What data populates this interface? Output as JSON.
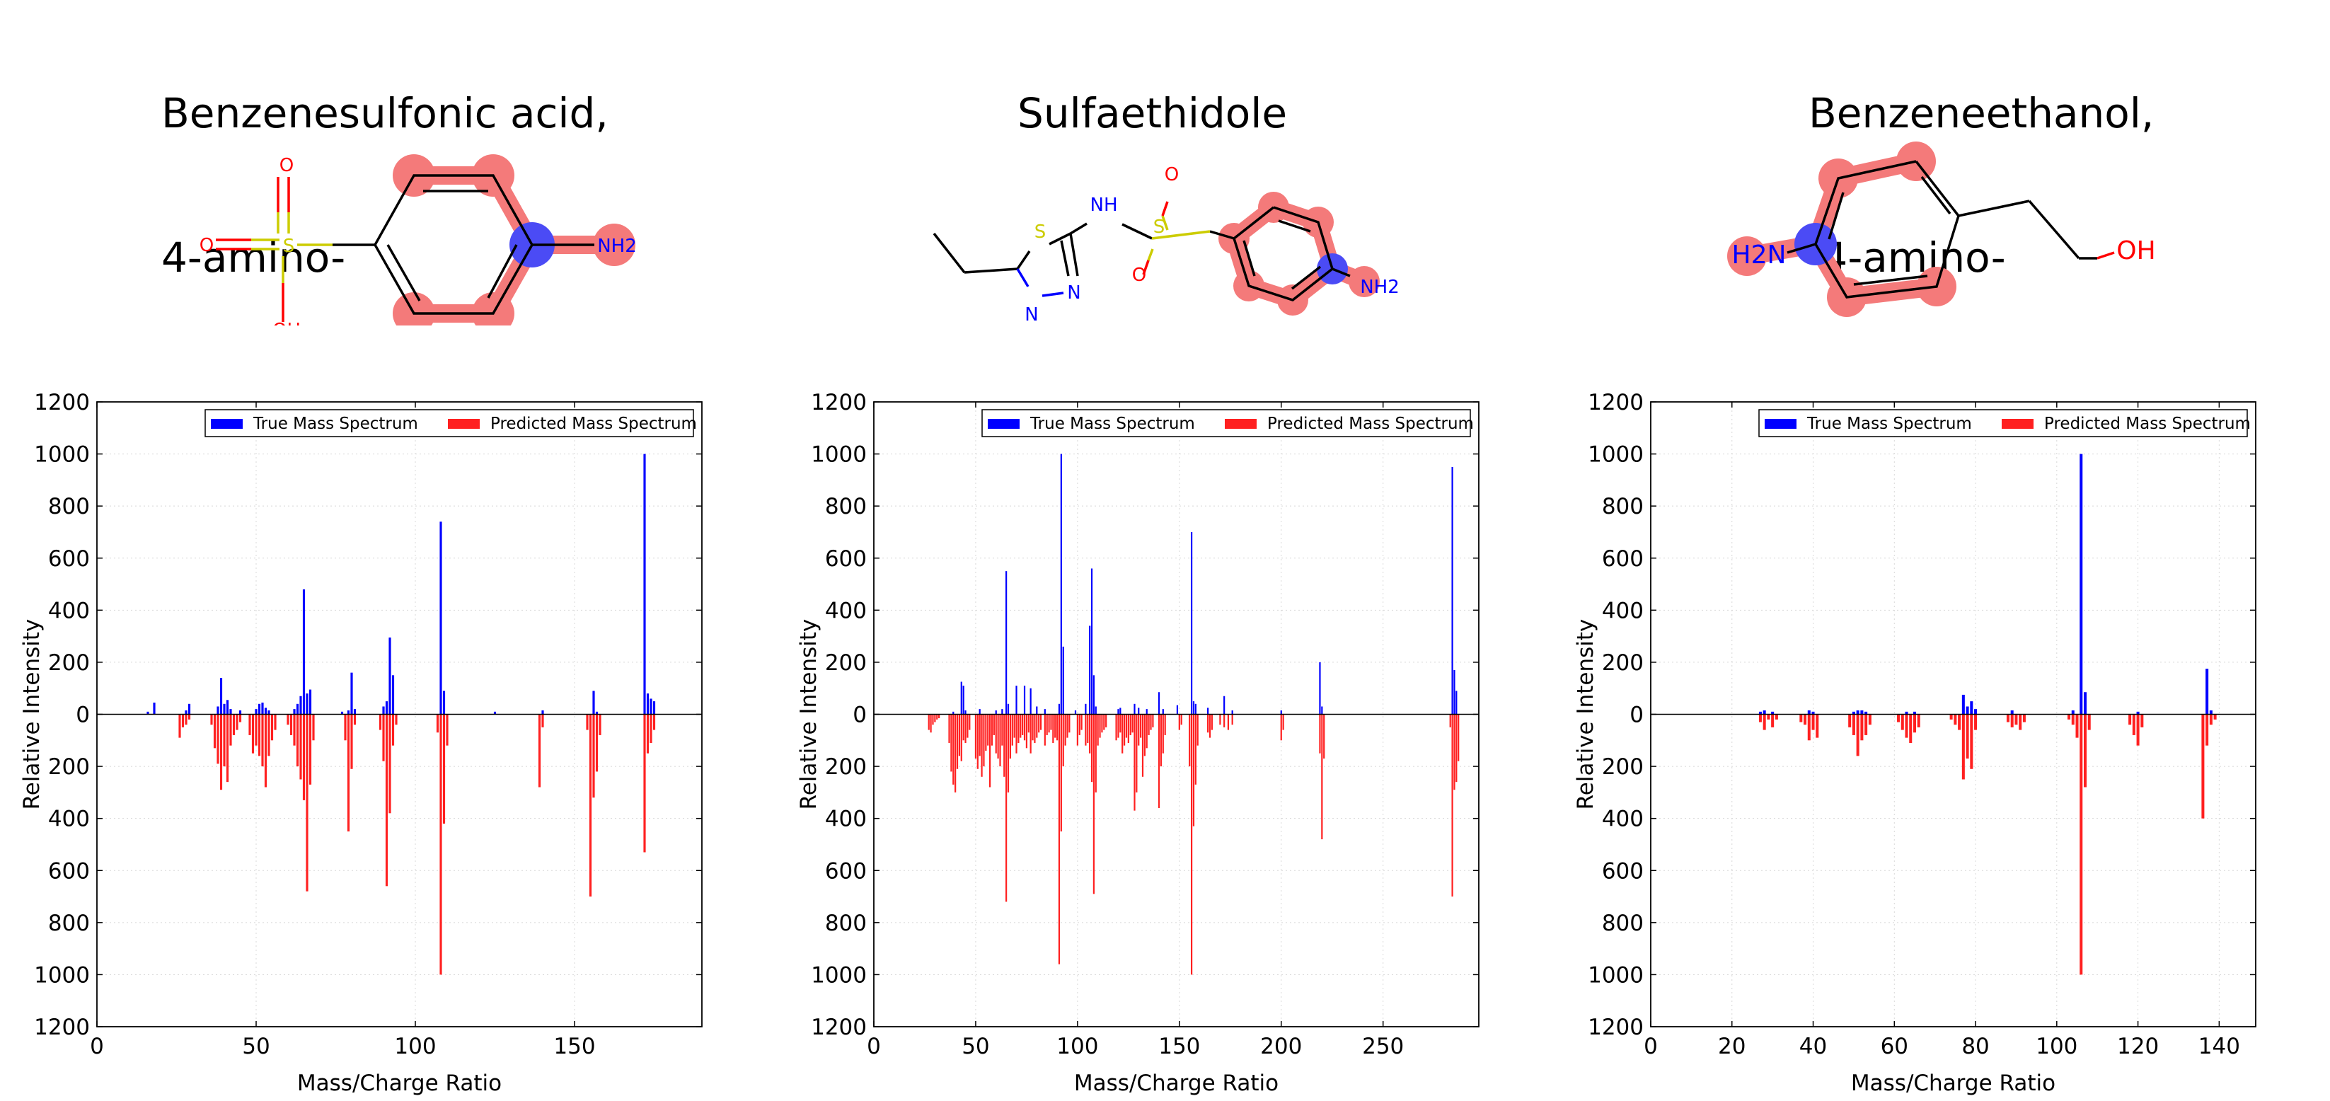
{
  "legend": {
    "true_label": "True Mass Spectrum",
    "pred_label": "Predicted Mass Spectrum"
  },
  "colors": {
    "true": "#0000ff",
    "pred": "#ff2020",
    "highlight": "#f47a7a",
    "atom_highlight": "#4b4bf5"
  },
  "panels": [
    {
      "title_line1": "Benzenesulfonic acid,",
      "title_line2": "4-amino-",
      "molecule": {
        "atoms": [
          {
            "label": "O",
            "color": "#ff0000"
          },
          {
            "label": "O",
            "color": "#ff0000"
          },
          {
            "label": "S",
            "color": "#cccc00"
          },
          {
            "label": "NH2",
            "color": "#0000ff"
          },
          {
            "label": "OH",
            "color": "#ff0000"
          }
        ]
      },
      "chart_data": {
        "type": "bar",
        "title": "",
        "xlabel": "Mass/Charge Ratio",
        "ylabel": "Relative Intensity",
        "xlim": [
          0,
          190
        ],
        "ylim": [
          -1200,
          1200
        ],
        "xticks": [
          0,
          50,
          100,
          150
        ],
        "yticks": [
          1200,
          1000,
          800,
          600,
          400,
          200,
          0,
          200,
          400,
          600,
          800,
          1000,
          1200
        ],
        "series": [
          {
            "name": "True Mass Spectrum",
            "x": [
              16,
              18,
              28,
              29,
              38,
              39,
              40,
              41,
              42,
              45,
              50,
              51,
              52,
              53,
              54,
              62,
              63,
              64,
              65,
              66,
              67,
              77,
              79,
              80,
              81,
              90,
              91,
              92,
              93,
              108,
              109,
              125,
              140,
              156,
              157,
              172,
              173,
              174,
              175
            ],
            "values": [
              10,
              45,
              15,
              40,
              30,
              140,
              40,
              55,
              20,
              15,
              20,
              40,
              45,
              25,
              15,
              20,
              40,
              70,
              480,
              80,
              95,
              10,
              15,
              160,
              20,
              30,
              50,
              295,
              150,
              740,
              90,
              10,
              15,
              90,
              10,
              1000,
              80,
              60,
              50
            ]
          },
          {
            "name": "Predicted Mass Spectrum",
            "x": [
              26,
              27,
              28,
              29,
              36,
              37,
              38,
              39,
              40,
              41,
              42,
              43,
              44,
              45,
              48,
              49,
              50,
              51,
              52,
              53,
              54,
              55,
              56,
              60,
              61,
              62,
              63,
              64,
              65,
              66,
              67,
              68,
              78,
              79,
              80,
              81,
              89,
              90,
              91,
              92,
              93,
              94,
              107,
              108,
              109,
              110,
              139,
              140,
              154,
              155,
              156,
              157,
              158,
              172,
              173,
              174,
              175
            ],
            "values": [
              90,
              50,
              40,
              20,
              40,
              130,
              190,
              290,
              200,
              260,
              120,
              80,
              60,
              30,
              80,
              150,
              120,
              160,
              200,
              280,
              160,
              100,
              60,
              40,
              80,
              120,
              200,
              250,
              330,
              680,
              270,
              100,
              100,
              450,
              210,
              40,
              60,
              180,
              660,
              380,
              120,
              40,
              70,
              1000,
              420,
              120,
              280,
              50,
              60,
              700,
              320,
              220,
              80,
              530,
              150,
              110,
              60
            ]
          }
        ]
      }
    },
    {
      "title_line1": "Sulfaethidole",
      "title_line2": "",
      "molecule": {
        "atoms": [
          {
            "label": "S",
            "color": "#cccc00"
          },
          {
            "label": "N",
            "color": "#0000ff"
          },
          {
            "label": "N",
            "color": "#0000ff"
          },
          {
            "label": "NH",
            "color": "#0000ff"
          },
          {
            "label": "S",
            "color": "#cccc00"
          },
          {
            "label": "O",
            "color": "#ff0000"
          },
          {
            "label": "O",
            "color": "#ff0000"
          },
          {
            "label": "NH2",
            "color": "#0000ff"
          }
        ]
      },
      "chart_data": {
        "type": "bar",
        "title": "",
        "xlabel": "Mass/Charge Ratio",
        "ylabel": "Relative Intensity",
        "xlim": [
          0,
          297
        ],
        "ylim": [
          -1200,
          1200
        ],
        "xticks": [
          0,
          50,
          100,
          150,
          200,
          250
        ],
        "yticks": [
          1200,
          1000,
          800,
          600,
          400,
          200,
          0,
          200,
          400,
          600,
          800,
          1000,
          1200
        ],
        "series": [
          {
            "name": "True Mass Spectrum",
            "x": [
              39,
              43,
              44,
              45,
              52,
              60,
              63,
              65,
              66,
              70,
              74,
              77,
              80,
              84,
              91,
              92,
              93,
              99,
              104,
              106,
              107,
              108,
              109,
              120,
              121,
              128,
              130,
              134,
              140,
              142,
              149,
              156,
              157,
              158,
              164,
              172,
              176,
              200,
              219,
              220,
              284,
              285,
              286
            ],
            "values": [
              10,
              125,
              110,
              15,
              20,
              15,
              20,
              550,
              40,
              110,
              110,
              100,
              30,
              20,
              40,
              1000,
              260,
              15,
              40,
              340,
              560,
              150,
              30,
              20,
              25,
              40,
              25,
              20,
              85,
              20,
              35,
              700,
              50,
              40,
              25,
              70,
              15,
              15,
              200,
              30,
              950,
              170,
              90
            ]
          },
          {
            "name": "Predicted Mass Spectrum",
            "x": [
              27,
              28,
              29,
              30,
              31,
              32,
              37,
              38,
              39,
              40,
              41,
              42,
              43,
              44,
              45,
              46,
              47,
              50,
              51,
              52,
              53,
              54,
              55,
              56,
              57,
              58,
              59,
              60,
              61,
              62,
              63,
              64,
              65,
              66,
              67,
              68,
              69,
              70,
              71,
              72,
              73,
              74,
              75,
              76,
              77,
              78,
              79,
              80,
              81,
              82,
              84,
              85,
              86,
              87,
              88,
              89,
              90,
              91,
              92,
              93,
              94,
              95,
              96,
              100,
              101,
              102,
              104,
              105,
              106,
              107,
              108,
              109,
              110,
              111,
              112,
              113,
              114,
              119,
              120,
              121,
              122,
              123,
              124,
              125,
              126,
              127,
              128,
              129,
              130,
              131,
              132,
              133,
              134,
              135,
              136,
              137,
              140,
              141,
              142,
              143,
              150,
              151,
              155,
              156,
              157,
              158,
              159,
              164,
              165,
              166,
              170,
              172,
              174,
              176,
              200,
              201,
              219,
              220,
              221,
              283,
              284,
              285,
              286,
              287
            ],
            "values": [
              60,
              70,
              40,
              30,
              20,
              15,
              110,
              220,
              270,
              300,
              210,
              160,
              180,
              100,
              110,
              90,
              60,
              170,
              210,
              160,
              240,
              200,
              140,
              120,
              280,
              120,
              80,
              150,
              170,
              200,
              120,
              240,
              720,
              300,
              170,
              120,
              90,
              150,
              110,
              90,
              80,
              100,
              130,
              70,
              150,
              100,
              110,
              90,
              70,
              60,
              120,
              80,
              70,
              60,
              110,
              90,
              100,
              960,
              450,
              200,
              120,
              90,
              70,
              120,
              80,
              60,
              120,
              110,
              150,
              260,
              690,
              300,
              120,
              90,
              70,
              60,
              50,
              100,
              90,
              70,
              150,
              120,
              90,
              110,
              80,
              70,
              370,
              300,
              120,
              90,
              240,
              160,
              130,
              80,
              60,
              50,
              360,
              200,
              150,
              80,
              60,
              40,
              200,
              1000,
              430,
              270,
              120,
              70,
              90,
              60,
              40,
              50,
              60,
              40,
              100,
              60,
              150,
              480,
              170,
              50,
              700,
              290,
              260,
              180
            ]
          }
        ]
      }
    },
    {
      "title_line1": "Benzeneethanol,",
      "title_line2": " 4-amino-",
      "molecule": {
        "atoms": [
          {
            "label": "H2N",
            "color": "#0000ff"
          },
          {
            "label": "OH",
            "color": "#ff0000"
          }
        ]
      },
      "chart_data": {
        "type": "bar",
        "title": "",
        "xlabel": "Mass/Charge Ratio",
        "ylabel": "Relative Intensity",
        "xlim": [
          0,
          149
        ],
        "ylim": [
          -1200,
          1200
        ],
        "xticks": [
          0,
          20,
          40,
          60,
          80,
          100,
          120,
          140
        ],
        "yticks": [
          1200,
          1000,
          800,
          600,
          400,
          200,
          0,
          200,
          400,
          600,
          800,
          1000,
          1200
        ],
        "series": [
          {
            "name": "True Mass Spectrum",
            "x": [
              27,
              28,
              30,
              39,
              40,
              50,
              51,
              52,
              53,
              63,
              65,
              77,
              78,
              79,
              80,
              89,
              104,
              106,
              107,
              120,
              137,
              138
            ],
            "values": [
              10,
              15,
              10,
              15,
              10,
              10,
              15,
              15,
              10,
              10,
              10,
              75,
              30,
              50,
              20,
              15,
              15,
              1000,
              85,
              10,
              175,
              15
            ]
          },
          {
            "name": "Predicted Mass Spectrum",
            "x": [
              27,
              28,
              29,
              30,
              31,
              37,
              38,
              39,
              40,
              41,
              49,
              50,
              51,
              52,
              53,
              54,
              61,
              62,
              63,
              64,
              65,
              66,
              74,
              75,
              76,
              77,
              78,
              79,
              80,
              88,
              89,
              90,
              91,
              92,
              103,
              104,
              105,
              106,
              107,
              108,
              118,
              119,
              120,
              121,
              136,
              137,
              138,
              139
            ],
            "values": [
              30,
              60,
              20,
              50,
              20,
              30,
              40,
              100,
              60,
              90,
              50,
              80,
              160,
              100,
              80,
              40,
              30,
              60,
              90,
              110,
              70,
              50,
              20,
              40,
              60,
              250,
              170,
              210,
              60,
              30,
              50,
              40,
              60,
              30,
              20,
              40,
              90,
              1000,
              280,
              60,
              40,
              80,
              120,
              50,
              400,
              120,
              40,
              20
            ]
          }
        ]
      }
    }
  ]
}
